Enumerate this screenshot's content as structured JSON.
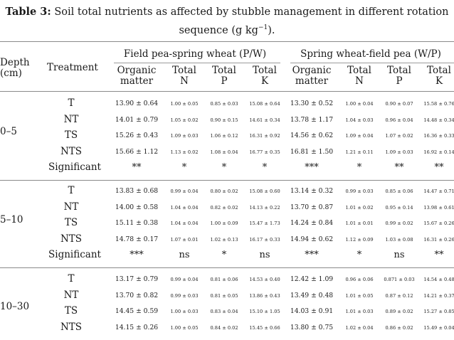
{
  "caption": {
    "label": "Table 3:",
    "line1": "Soil total nutrients as affected by stubble management in different rotation",
    "line2a": "sequence (g kg",
    "line2sup": "−1",
    "line2b": ")."
  },
  "headers": {
    "depth": [
      "Depth",
      "(cm)"
    ],
    "treatment": "Treatment",
    "group1": "Field pea-spring wheat (P/W)",
    "group2": "Spring wheat-field pea (W/P)",
    "subcols": [
      [
        "Organic",
        "matter"
      ],
      [
        "Total",
        "N"
      ],
      [
        "Total",
        "P"
      ],
      [
        "Total",
        "K"
      ],
      [
        "Organic",
        "matter"
      ],
      [
        "Total",
        "N"
      ],
      [
        "Total",
        "P"
      ],
      [
        "Total",
        "K"
      ]
    ]
  },
  "sections": [
    {
      "depth": "0–5",
      "rows": [
        {
          "treatment": "T",
          "values": [
            "13.90 ± 0.64",
            "1.00 ± 0.05",
            "0.85 ± 0.03",
            "15.08 ± 0.64",
            "13.30 ± 0.52",
            "1.00 ± 0.04",
            "0.90 ± 0.07",
            "15.58 ± 0.76"
          ]
        },
        {
          "treatment": "NT",
          "values": [
            "14.01 ± 0.79",
            "1.05 ± 0.02",
            "0.90 ± 0.15",
            "14.61 ± 0.34",
            "13.78 ± 1.17",
            "1.04 ± 0.03",
            "0.96 ± 0.04",
            "14.48 ± 0.34"
          ]
        },
        {
          "treatment": "TS",
          "values": [
            "15.26 ± 0.43",
            "1.09 ± 0.03",
            "1.06 ± 0.12",
            "16.31 ± 0.92",
            "14.56 ± 0.62",
            "1.09 ± 0.04",
            "1.07 ± 0.02",
            "16.36 ± 0.33"
          ]
        },
        {
          "treatment": "NTS",
          "values": [
            "15.66 ± 1.12",
            "1.13 ± 0.02",
            "1.08 ± 0.04",
            "16.77 ± 0.35",
            "16.81 ± 1.50",
            "1.21 ± 0.11",
            "1.09 ± 0.03",
            "16.92 ± 0.14"
          ]
        }
      ],
      "significant": {
        "label": "Significant",
        "values": [
          "**",
          "*",
          "*",
          "*",
          "***",
          "*",
          "**",
          "**"
        ]
      }
    },
    {
      "depth": "5–10",
      "rows": [
        {
          "treatment": "T",
          "values": [
            "13.83 ± 0.68",
            "0.99 ± 0.04",
            "0.80 ± 0.02",
            "15.08 ± 0.60",
            "13.14 ± 0.32",
            "0.99 ± 0.03",
            "0.85 ± 0.06",
            "14.47 ± 0.71"
          ]
        },
        {
          "treatment": "NT",
          "values": [
            "14.00 ± 0.58",
            "1.04 ± 0.04",
            "0.82 ± 0.02",
            "14.13 ± 0.22",
            "13.70 ± 0.87",
            "1.01 ± 0.02",
            "0.95 ± 0.14",
            "13.98 ± 0.61"
          ]
        },
        {
          "treatment": "TS",
          "values": [
            "15.11 ± 0.38",
            "1.04 ± 0.04",
            "1.00 ± 0.09",
            "15.47 ± 1.73",
            "14.24 ± 0.84",
            "1.01 ± 0.01",
            "0.99 ± 0.02",
            "15.67 ± 0.26"
          ]
        },
        {
          "treatment": "NTS",
          "values": [
            "14.78 ± 0.17",
            "1.07 ± 0.01",
            "1.02 ± 0.13",
            "16.17 ± 0.33",
            "14.94 ± 0.62",
            "1.12 ± 0.09",
            "1.03 ± 0.08",
            "16.31 ± 0.26"
          ]
        }
      ],
      "significant": {
        "label": "Significant",
        "values": [
          "***",
          "ns",
          "*",
          "ns",
          "***",
          "*",
          "ns",
          "**"
        ]
      }
    },
    {
      "depth": "10–30",
      "rows": [
        {
          "treatment": "T",
          "values": [
            "13.17 ± 0.79",
            "0.99 ± 0.04",
            "0.81 ± 0.06",
            "14.53 ± 0.40",
            "12.42 ± 1.09",
            "0.96 ± 0.06",
            "0.871 ± 0.03",
            "14.54 ± 0.48"
          ]
        },
        {
          "treatment": "NT",
          "values": [
            "13.70 ± 0.82",
            "0.99 ± 0.03",
            "0.81 ± 0.05",
            "13.86 ± 0.43",
            "13.49 ± 0.48",
            "1.01 ± 0.05",
            "0.87 ± 0.12",
            "14.21 ± 0.37"
          ]
        },
        {
          "treatment": "TS",
          "values": [
            "14.45 ± 0.59",
            "1.00 ± 0.03",
            "0.83 ± 0.04",
            "15.10 ± 1.05",
            "14.03 ± 0.91",
            "1.01 ± 0.03",
            "0.89 ± 0.02",
            "15.27 ± 0.85"
          ]
        },
        {
          "treatment": "NTS",
          "values": [
            "14.15 ± 0.26",
            "1.00 ± 0.05",
            "0.84 ± 0.02",
            "15.45 ± 0.66",
            "13.80 ± 0.75",
            "1.02 ± 0.04",
            "0.86 ± 0.02",
            "15.49 ± 0.04"
          ]
        }
      ]
    }
  ]
}
